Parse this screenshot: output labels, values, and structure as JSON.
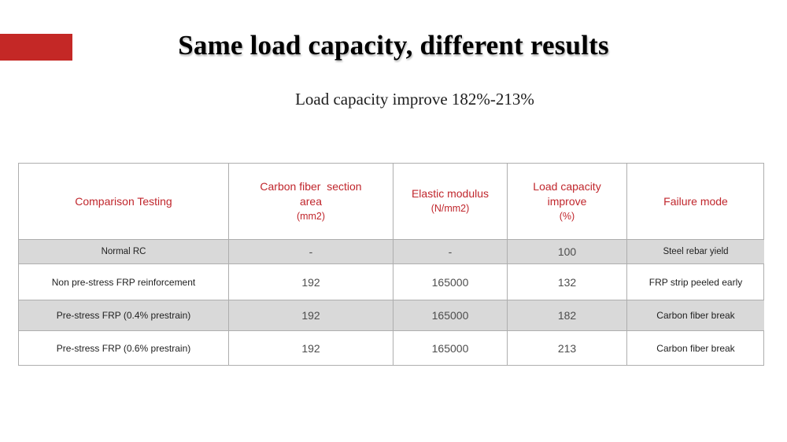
{
  "slide": {
    "title": "Same load capacity, different results",
    "subtitle": "Load capacity improve 182%-213%"
  },
  "colors": {
    "accent": "#c42826",
    "header_text": "#c0262c",
    "shaded_row": "#d9d9d9",
    "table_border": "#aeaeae",
    "body_text": "#222222",
    "number_text": "#4d4d4d"
  },
  "table": {
    "headers": [
      {
        "line1": "Comparison Testing"
      },
      {
        "line1": "Carbon fiber  section",
        "line2": "area",
        "line3": "(mm2)"
      },
      {
        "line1": "Elastic modulus",
        "line2": "(N/mm2)"
      },
      {
        "line1": "Load capacity",
        "line2": "improve",
        "line3": "(%)"
      },
      {
        "line1": "Failure mode"
      }
    ],
    "rows": [
      {
        "name": "Normal RC",
        "area": "-",
        "modulus": "-",
        "improve": "100",
        "failure": "Steel rebar yield"
      },
      {
        "name": "Non pre-stress FRP reinforcement",
        "area": "192",
        "modulus": "165000",
        "improve": "132",
        "failure": "FRP strip peeled early"
      },
      {
        "name": "Pre-stress FRP (0.4% prestrain)",
        "area": "192",
        "modulus": "165000",
        "improve": "182",
        "failure": "Carbon fiber break"
      },
      {
        "name": "Pre-stress FRP (0.6% prestrain)",
        "area": "192",
        "modulus": "165000",
        "improve": "213",
        "failure": "Carbon fiber break"
      }
    ]
  }
}
